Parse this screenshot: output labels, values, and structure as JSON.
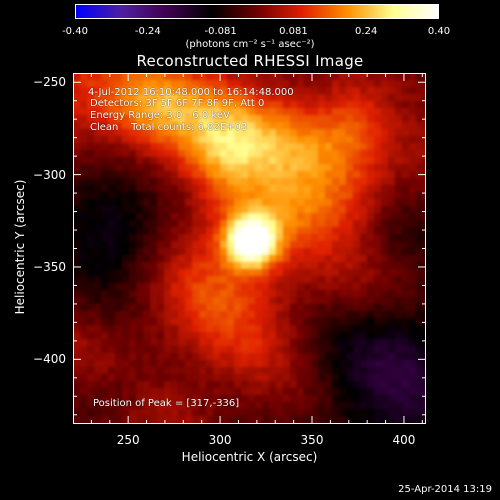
{
  "chart_data": {
    "type": "heatmap",
    "title": "Reconstructed RHESSI Image",
    "xlabel": "Heliocentric X (arcsec)",
    "ylabel": "Heliocentric Y (arcsec)",
    "xlim": [
      220,
      412
    ],
    "ylim": [
      -435,
      -245
    ],
    "x_ticks": [
      250,
      300,
      350,
      400
    ],
    "y_ticks": [
      -250,
      -300,
      -350,
      -400
    ],
    "colorbar": {
      "range": [
        -0.4,
        0.4
      ],
      "ticks": [
        "-0.40",
        "-0.24",
        "-0.081",
        "0.081",
        "0.24",
        "0.40"
      ],
      "unit": "(photons cm⁻² s⁻¹ asec⁻²)",
      "colormap": [
        "#0000ff",
        "#5020a0",
        "#400050",
        "#000000",
        "#700000",
        "#e02000",
        "#ff9000",
        "#ffff90",
        "#ffffff"
      ]
    },
    "annotations": {
      "time": "4-Jul-2012 16:10:48.000 to 16:14:48.000",
      "detectors": "Detectors: 3F 5F 6F 7F 8F 9F, Att 0",
      "energy": "Energy Range: 3.0 - 6.0 keV",
      "clean": "Clean    Total counts: 6.82E+03",
      "peak": "Position of Peak = [317,-336]"
    },
    "peak": [
      317,
      -336
    ],
    "sources": [
      {
        "x": 317,
        "y": -336,
        "amp": 0.4
      },
      {
        "x": 300,
        "y": -292,
        "amp": 0.26
      },
      {
        "x": 372,
        "y": -270,
        "amp": 0.26
      },
      {
        "x": 262,
        "y": -265,
        "amp": 0.18
      }
    ]
  },
  "footer": {
    "date": "25-Apr-2014 13:19"
  }
}
